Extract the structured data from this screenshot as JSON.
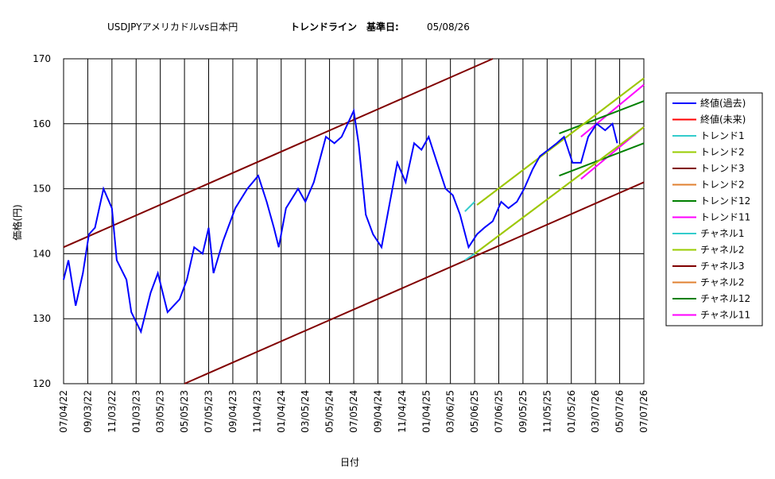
{
  "chart_data": {
    "type": "line",
    "title": "USDJPYアメリカドルvs日本円",
    "subtitle": "トレンドライン　基準日:",
    "base_date": "05/08/26",
    "x_label": "日付",
    "y_label": "価格(円)",
    "xlim": [
      0,
      24
    ],
    "ylim": [
      120,
      170
    ],
    "yticks": [
      120,
      130,
      140,
      150,
      160,
      170
    ],
    "xticks": [
      {
        "value": 0,
        "label": "07/04/22"
      },
      {
        "value": 1,
        "label": "09/03/22"
      },
      {
        "value": 2,
        "label": "11/03/22"
      },
      {
        "value": 3,
        "label": "01/03/23"
      },
      {
        "value": 4,
        "label": "03/05/23"
      },
      {
        "value": 5,
        "label": "05/05/23"
      },
      {
        "value": 6,
        "label": "07/05/23"
      },
      {
        "value": 7,
        "label": "09/04/23"
      },
      {
        "value": 8,
        "label": "11/04/23"
      },
      {
        "value": 9,
        "label": "01/04/24"
      },
      {
        "value": 10,
        "label": "03/05/24"
      },
      {
        "value": 11,
        "label": "05/05/24"
      },
      {
        "value": 12,
        "label": "07/05/24"
      },
      {
        "value": 13,
        "label": "09/04/24"
      },
      {
        "value": 14,
        "label": "11/04/24"
      },
      {
        "value": 15,
        "label": "01/04/25"
      },
      {
        "value": 16,
        "label": "03/06/25"
      },
      {
        "value": 17,
        "label": "05/06/25"
      },
      {
        "value": 18,
        "label": "07/06/25"
      },
      {
        "value": 19,
        "label": "09/05/25"
      },
      {
        "value": 20,
        "label": "11/05/25"
      },
      {
        "value": 21,
        "label": "01/05/26"
      },
      {
        "value": 22,
        "label": "03/07/26"
      },
      {
        "value": 23,
        "label": "05/07/26"
      },
      {
        "value": 24,
        "label": "07/07/26"
      }
    ],
    "grid": true,
    "legend": "right",
    "series": [
      {
        "name": "終値(過去)",
        "color": "#0000ff",
        "x": [
          0,
          0.2,
          0.5,
          0.8,
          1.05,
          1.3,
          1.65,
          2,
          2.2,
          2.6,
          2.8,
          3.2,
          3.6,
          3.9,
          4.3,
          4.8,
          5.1,
          5.4,
          5.75,
          6,
          6.2,
          6.6,
          7.1,
          7.6,
          8.05,
          8.4,
          8.7,
          8.9,
          9.2,
          9.7,
          10,
          10.35,
          10.85,
          11.2,
          11.5,
          12,
          12.2,
          12.5,
          12.8,
          13.15,
          13.5,
          13.8,
          14.15,
          14.5,
          14.8,
          15.1,
          15.45,
          15.8,
          16.1,
          16.4,
          16.75,
          17.1,
          17.4,
          17.75,
          18.1,
          18.4,
          18.75,
          19.05,
          19.4,
          19.7,
          20.05,
          20.4,
          20.7,
          21.05,
          21.4,
          21.7,
          22.05,
          22.4,
          22.7,
          22.9
        ],
        "values": [
          136,
          139,
          132,
          137,
          143,
          144,
          150,
          147,
          139,
          136,
          131,
          128,
          134,
          137,
          131,
          133,
          136,
          141,
          140,
          144,
          137,
          142,
          147,
          150,
          152,
          148,
          144,
          141,
          147,
          150,
          148,
          151,
          158,
          157,
          158,
          162,
          157,
          146,
          143,
          141,
          148,
          154,
          151,
          157,
          156,
          158,
          154,
          150,
          149,
          146,
          141,
          143,
          144,
          145,
          148,
          147,
          148,
          150,
          153,
          155,
          156,
          157,
          158,
          154,
          154,
          158,
          160,
          159,
          160,
          157
        ]
      },
      {
        "name": "終値(未来)",
        "color": "#ff0000",
        "x": [],
        "values": []
      },
      {
        "name": "トレンド1",
        "color": "#33cccc",
        "x": [
          16.6,
          17
        ],
        "values": [
          146.5,
          148
        ]
      },
      {
        "name": "トレンド2",
        "color": "#99cc00",
        "x": [
          17,
          24
        ],
        "values": [
          140,
          159.5
        ]
      },
      {
        "name": "トレンド3",
        "color": "#800000",
        "x": [
          0,
          17.75
        ],
        "values": [
          141,
          170
        ]
      },
      {
        "name": "トレンド2",
        "color": "#e08030",
        "x": [
          17,
          24
        ],
        "values": [
          140,
          159.5
        ]
      },
      {
        "name": "トレンド12",
        "color": "#008000",
        "x": [
          20.5,
          24
        ],
        "values": [
          152,
          157
        ]
      },
      {
        "name": "トレンド11",
        "color": "#ff00ff",
        "x": [
          21.4,
          24
        ],
        "values": [
          151.5,
          159.5
        ]
      },
      {
        "name": "チャネル1",
        "color": "#33cccc",
        "x": [
          16.6,
          17
        ],
        "values": [
          139,
          140
        ]
      },
      {
        "name": "チャネル2",
        "color": "#99cc00",
        "x": [
          17.1,
          24
        ],
        "values": [
          147.5,
          167
        ]
      },
      {
        "name": "チャネル3",
        "color": "#800000",
        "x": [
          5,
          24
        ],
        "values": [
          120,
          151
        ]
      },
      {
        "name": "チャネル2",
        "color": "#e08030",
        "x": [
          17.1,
          24
        ],
        "values": [
          147.5,
          167
        ]
      },
      {
        "name": "チャネル12",
        "color": "#008000",
        "x": [
          20.5,
          24
        ],
        "values": [
          158.5,
          163.5
        ]
      },
      {
        "name": "チャネル11",
        "color": "#ff00ff",
        "x": [
          21.4,
          24
        ],
        "values": [
          158,
          166
        ]
      }
    ]
  }
}
